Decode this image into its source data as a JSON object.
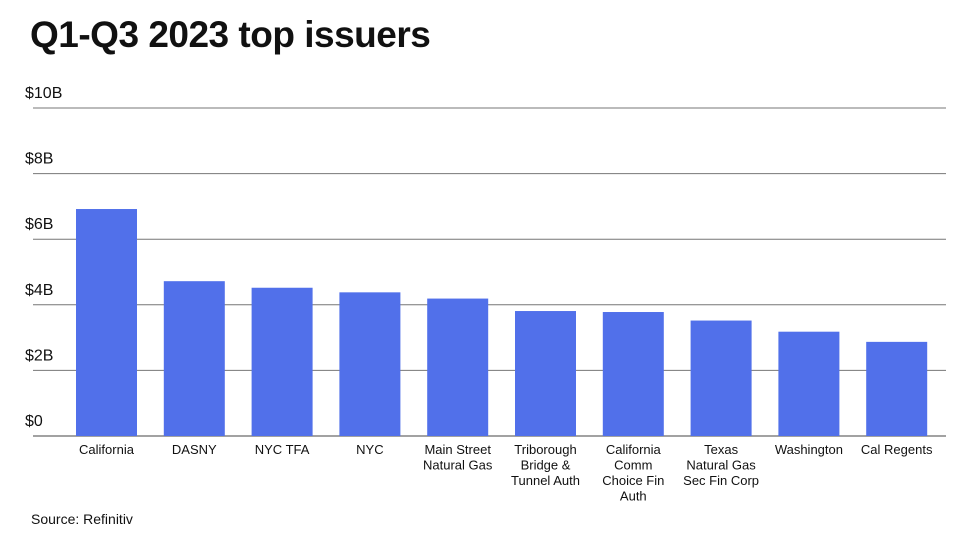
{
  "chart_data": {
    "type": "bar",
    "title": "Q1-Q3 2023 top issuers",
    "xlabel": "",
    "ylabel": "",
    "ylim": [
      0,
      10
    ],
    "yticks": [
      0,
      2,
      4,
      6,
      8,
      10
    ],
    "ytick_labels": [
      "$0",
      "$2B",
      "$4B",
      "$6B",
      "$8B",
      "$10B"
    ],
    "grid": true,
    "categories": [
      [
        "California"
      ],
      [
        "DASNY"
      ],
      [
        "NYC TFA"
      ],
      [
        "NYC"
      ],
      [
        "Main Street",
        "Natural Gas"
      ],
      [
        "Triborough",
        "Bridge &",
        "Tunnel Auth"
      ],
      [
        "California",
        "Comm",
        "Choice Fin",
        "Auth"
      ],
      [
        "Texas",
        "Natural Gas",
        "Sec Fin Corp"
      ],
      [
        "Washington"
      ],
      [
        "Cal Regents"
      ]
    ],
    "values": [
      6.92,
      4.72,
      4.52,
      4.38,
      4.19,
      3.81,
      3.78,
      3.52,
      3.18,
      2.87
    ],
    "units": "billions USD",
    "bar_color": "#5170EA",
    "source": "Source: Refinitiv"
  }
}
